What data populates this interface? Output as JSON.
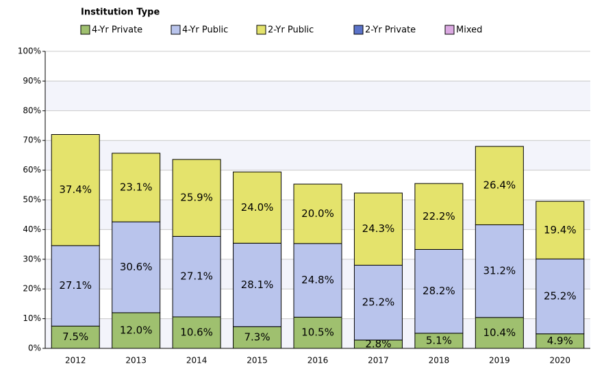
{
  "chart_data": {
    "type": "stacked_bar",
    "legend_title": "Institution Type",
    "categories": [
      "2012",
      "2013",
      "2014",
      "2015",
      "2016",
      "2017",
      "2018",
      "2019",
      "2020"
    ],
    "series": [
      {
        "name": "4-Yr Private",
        "color": "#9fc06f",
        "values": [
          7.5,
          12.0,
          10.6,
          7.3,
          10.5,
          2.8,
          5.1,
          10.4,
          4.9
        ],
        "value_labels": [
          "7.5%",
          "12.0%",
          "10.6%",
          "7.3%",
          "10.5%",
          "2.8%",
          "5.1%",
          "10.4%",
          "4.9%"
        ]
      },
      {
        "name": "4-Yr Public",
        "color": "#b9c4ec",
        "values": [
          27.1,
          30.6,
          27.1,
          28.1,
          24.8,
          25.2,
          28.2,
          31.2,
          25.2
        ],
        "value_labels": [
          "27.1%",
          "30.6%",
          "27.1%",
          "28.1%",
          "24.8%",
          "25.2%",
          "28.2%",
          "31.2%",
          "25.2%"
        ]
      },
      {
        "name": "2-Yr Public",
        "color": "#e4e36c",
        "values": [
          37.4,
          23.1,
          25.9,
          24.0,
          20.0,
          24.3,
          22.2,
          26.4,
          19.4
        ],
        "value_labels": [
          "37.4%",
          "23.1%",
          "25.9%",
          "24.0%",
          "20.0%",
          "24.3%",
          "22.2%",
          "26.4%",
          "19.4%"
        ]
      },
      {
        "name": "2-Yr Private",
        "color": "#5b73c9",
        "values": [
          0,
          0,
          0,
          0,
          0,
          0,
          0,
          0,
          0
        ]
      },
      {
        "name": "Mixed",
        "color": "#dba9e2",
        "values": [
          0,
          0,
          0,
          0,
          0,
          0,
          0,
          0,
          0
        ]
      }
    ],
    "ylim": [
      0,
      100
    ],
    "yticks": [
      {
        "value": 0,
        "label": "0%"
      },
      {
        "value": 10,
        "label": "10%"
      },
      {
        "value": 20,
        "label": "20%"
      },
      {
        "value": 30,
        "label": "30%"
      },
      {
        "value": 40,
        "label": "40%"
      },
      {
        "value": 50,
        "label": "50%"
      },
      {
        "value": 60,
        "label": "60%"
      },
      {
        "value": 70,
        "label": "70%"
      },
      {
        "value": 80,
        "label": "80%"
      },
      {
        "value": 90,
        "label": "90%"
      },
      {
        "value": 100,
        "label": "100%"
      }
    ],
    "grid": true
  }
}
